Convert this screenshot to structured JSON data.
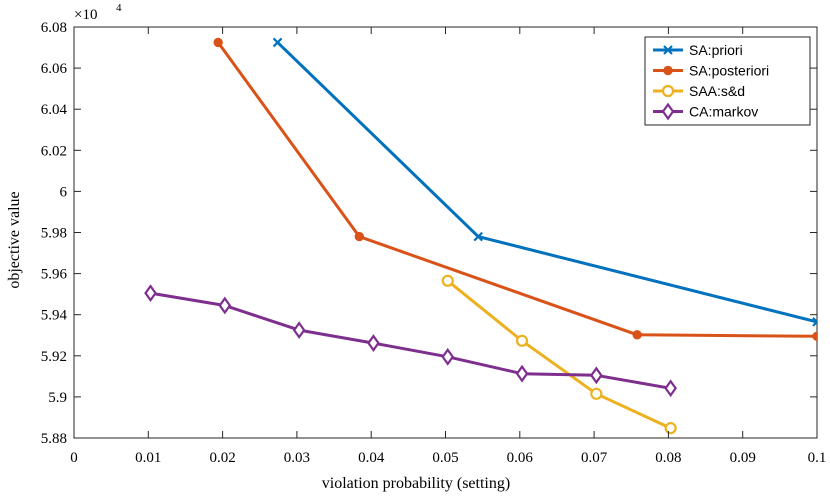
{
  "chart_data": {
    "type": "line",
    "title": "",
    "xlabel": "violation probability (setting)",
    "ylabel": "objective value",
    "xlim": [
      0,
      0.1
    ],
    "ylim": [
      5.88,
      6.08
    ],
    "y_exponent_label": "×10",
    "y_exponent_power": "4",
    "grid": false,
    "legend_position": "top-right",
    "x_ticks": [
      0,
      0.01,
      0.02,
      0.03,
      0.04,
      0.05,
      0.06,
      0.07,
      0.08,
      0.09,
      0.1
    ],
    "x_tick_labels": [
      "0",
      "0.01",
      "0.02",
      "0.03",
      "0.04",
      "0.05",
      "0.06",
      "0.07",
      "0.08",
      "0.09",
      "0.1"
    ],
    "y_ticks": [
      5.88,
      5.9,
      5.92,
      5.94,
      5.96,
      5.98,
      6,
      6.02,
      6.04,
      6.06,
      6.08
    ],
    "y_tick_labels": [
      "5.88",
      "5.9",
      "5.92",
      "5.94",
      "5.96",
      "5.98",
      "6",
      "6.02",
      "6.04",
      "6.06",
      "6.08"
    ],
    "series": [
      {
        "name": "SA:priori",
        "color": "#0072BD",
        "marker": "x",
        "x": [
          0.0274,
          0.0544,
          0.1
        ],
        "y": [
          6.0725,
          5.978,
          5.9365
        ]
      },
      {
        "name": "SA:posteriori",
        "color": "#D95319",
        "marker": "dot",
        "x": [
          0.0194,
          0.0384,
          0.0758,
          0.1
        ],
        "y": [
          6.0725,
          5.978,
          5.9302,
          5.9295
        ]
      },
      {
        "name": "SAA:s&d",
        "color": "#EDB120",
        "marker": "circle",
        "x": [
          0.0503,
          0.0603,
          0.0703,
          0.0803
        ],
        "y": [
          5.9565,
          5.9273,
          5.9015,
          5.8848
        ]
      },
      {
        "name": "CA:markov",
        "color": "#7E2F8E",
        "marker": "diamond",
        "x": [
          0.0103,
          0.0203,
          0.0303,
          0.0403,
          0.0503,
          0.0603,
          0.0703,
          0.0803
        ],
        "y": [
          5.9505,
          5.9445,
          5.9325,
          5.9262,
          5.9195,
          5.9113,
          5.9105,
          5.9042
        ]
      }
    ]
  }
}
